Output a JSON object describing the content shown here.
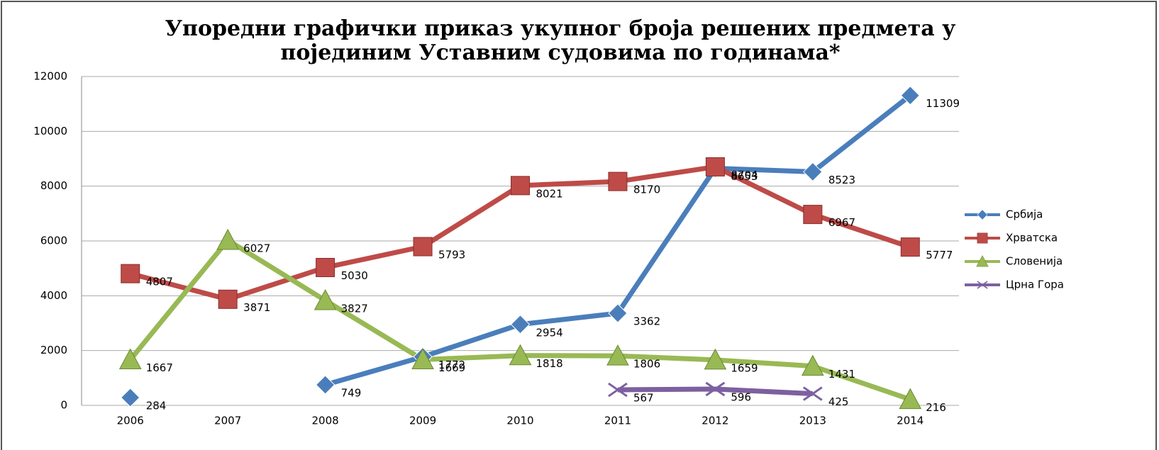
{
  "chart_data": {
    "type": "line",
    "title": [
      "Упоредни графички приказ укупног броја решених предмета у",
      "појединим Уставним судовима по годинама*"
    ],
    "categories": [
      "2006",
      "2007",
      "2008",
      "2009",
      "2010",
      "2011",
      "2012",
      "2013",
      "2014"
    ],
    "series": [
      {
        "name": "Србија",
        "color": "#4a7ebb",
        "marker": "diamond",
        "values": [
          284,
          null,
          749,
          1772,
          2954,
          3362,
          8653,
          8523,
          11309
        ]
      },
      {
        "name": "Хрватска",
        "color": "#be4b48",
        "marker": "square",
        "values": [
          4807,
          3871,
          5030,
          5793,
          8021,
          8170,
          8704,
          6967,
          5777
        ]
      },
      {
        "name": "Словенија",
        "color": "#98b954",
        "marker": "triangle",
        "values": [
          1667,
          6027,
          3827,
          1669,
          1818,
          1806,
          1659,
          1431,
          216
        ]
      },
      {
        "name": "Црна Гора",
        "color": "#7d60a0",
        "marker": "x",
        "values": [
          null,
          null,
          null,
          null,
          null,
          567,
          596,
          425,
          null
        ]
      }
    ],
    "ylim": [
      0,
      12000
    ],
    "yticks": [
      0,
      2000,
      4000,
      6000,
      8000,
      10000,
      12000
    ],
    "grid": true,
    "legend": "right"
  }
}
